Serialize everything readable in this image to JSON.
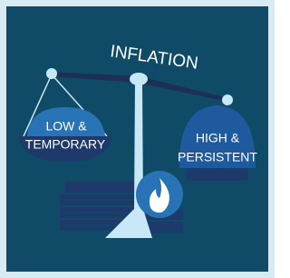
{
  "title": "INFLATION",
  "left_pan": {
    "lines": [
      "LOW &",
      "TEMPORARY"
    ]
  },
  "right_pan": {
    "lines": [
      "HIGH &",
      "PERSISTENT"
    ]
  }
}
